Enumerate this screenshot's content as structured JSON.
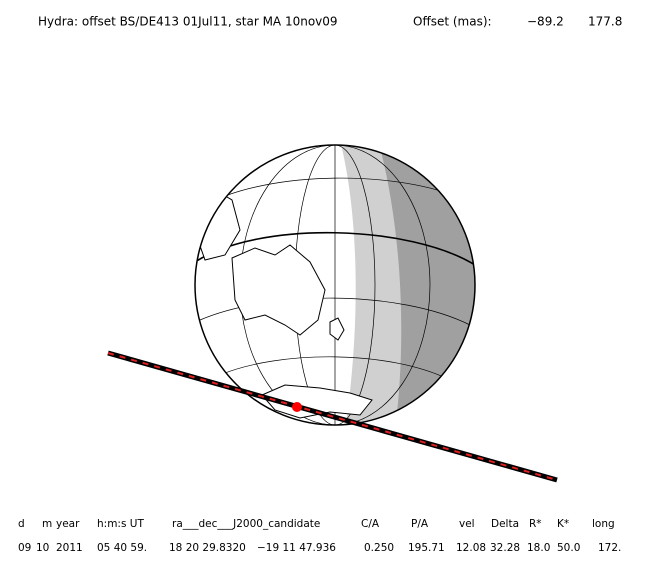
{
  "header": {
    "title": "Hydra: offset BS/DE413 01Jul11, star MA 10nov09",
    "offset_label": "Offset (mas):",
    "offset_values": [
      "−89.2",
      "177.8"
    ]
  },
  "table": {
    "columns": [
      "d",
      "m",
      "year",
      "h:m:s UT",
      "ra___dec___J2000_candidate",
      "C/A",
      "P/A",
      "vel",
      "Delta",
      "R*",
      "K*",
      "long"
    ],
    "row": [
      "09",
      "10",
      "2011",
      "05 40 59.",
      "18 20 29.8320",
      "−19 11  47.936",
      "0.250",
      "195.71",
      "12.08",
      "32.28",
      "18.0",
      "50.0",
      "172."
    ]
  }
}
